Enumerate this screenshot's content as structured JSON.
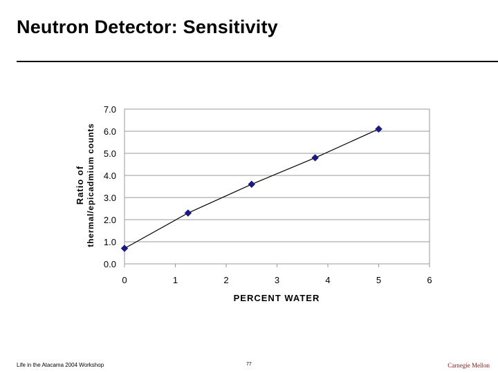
{
  "slide": {
    "title": "Neutron Detector: Sensitivity"
  },
  "footer": {
    "left": "Life in the Atacama 2004 Workshop",
    "page": "77",
    "right": "Carnegie Mellon"
  },
  "colors": {
    "marker": "#1a1a80",
    "line": "#000000",
    "grid": "#9a9a9a",
    "footer_right": "#8b1a1a"
  },
  "chart_data": {
    "type": "scatter",
    "title": "",
    "xlabel": "PERCENT WATER",
    "ylabel_lines": [
      "Ratio of",
      "thermal/epicadmium counts"
    ],
    "xlim": [
      0,
      6
    ],
    "ylim": [
      0,
      7
    ],
    "x_ticks": [
      "0",
      "1",
      "2",
      "3",
      "4",
      "5",
      "6"
    ],
    "y_ticks": [
      "0.0",
      "1.0",
      "2.0",
      "3.0",
      "4.0",
      "5.0",
      "6.0",
      "7.0"
    ],
    "grid": "horizontal",
    "legend": "none",
    "series": [
      {
        "marker": "diamond",
        "line": "solid",
        "x": [
          0,
          1.25,
          2.5,
          3.75,
          5
        ],
        "y": [
          0.7,
          2.3,
          3.6,
          4.8,
          6.1
        ]
      }
    ]
  }
}
